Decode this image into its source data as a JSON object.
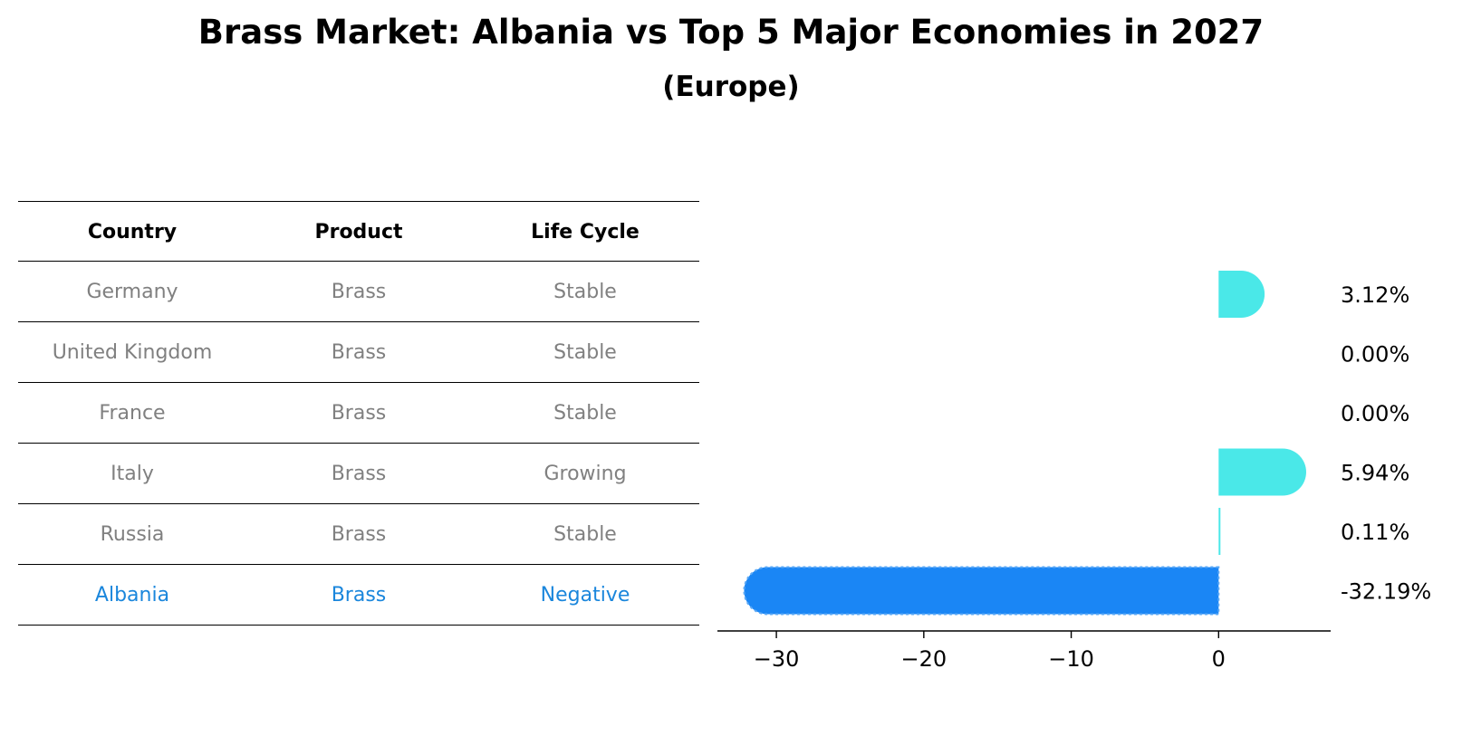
{
  "title": "Brass Market: Albania vs Top 5 Major Economies in 2027",
  "subtitle": "(Europe)",
  "table": {
    "headers": [
      "Country",
      "Product",
      "Life Cycle"
    ],
    "rows": [
      [
        "Germany",
        "Brass",
        "Stable"
      ],
      [
        "United Kingdom",
        "Brass",
        "Stable"
      ],
      [
        "France",
        "Brass",
        "Stable"
      ],
      [
        "Italy",
        "Brass",
        "Growing"
      ],
      [
        "Russia",
        "Brass",
        "Stable"
      ],
      [
        "Albania",
        "Brass",
        "Negative"
      ]
    ],
    "highlight_row": 5
  },
  "colors": {
    "positive": "#4ae8e8",
    "highlight": "#1a86f5",
    "muted_text": "#808080",
    "highlight_text": "#1a86dc"
  },
  "chart_data": {
    "type": "bar",
    "orientation": "horizontal",
    "categories": [
      "Germany",
      "United Kingdom",
      "France",
      "Italy",
      "Russia",
      "Albania"
    ],
    "values": [
      3.12,
      0.0,
      0.0,
      5.94,
      0.11,
      -32.19
    ],
    "value_labels": [
      "3.12%",
      "0.00%",
      "0.00%",
      "5.94%",
      "0.11%",
      "-32.19%"
    ],
    "xlim": [
      -34,
      7.6
    ],
    "xticks": [
      -30,
      -20,
      -10,
      0
    ],
    "xtick_labels": [
      "−30",
      "−20",
      "−10",
      "0"
    ],
    "highlight_index": 5,
    "title": "",
    "xlabel": "",
    "ylabel": ""
  }
}
